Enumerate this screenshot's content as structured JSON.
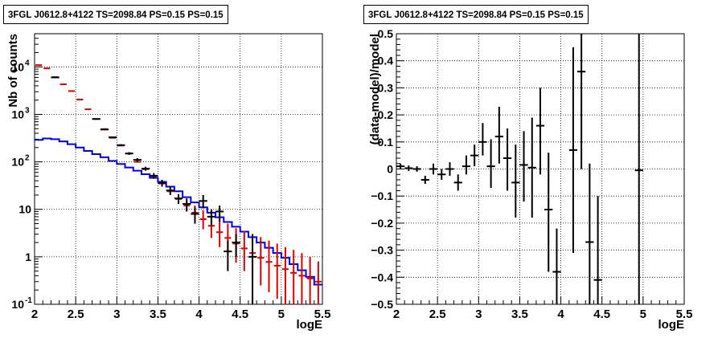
{
  "chart_data": [
    {
      "type": "scatter",
      "title": "3FGL J0612.8+4122 TS=2098.84 PS=0.15 PS=0.15",
      "xlabel": "logE",
      "ylabel": "Nb of counts",
      "xlim": [
        2,
        5.5
      ],
      "ylim": [
        0.1,
        50000
      ],
      "yscale": "log",
      "grid": true,
      "xticks": [
        "2",
        "2.5",
        "3",
        "3.5",
        "4",
        "4.5",
        "5",
        "5.5"
      ],
      "yticks": [
        {
          "v": 0.1,
          "label": "10",
          "exp": "-1"
        },
        {
          "v": 1,
          "label": "1",
          "exp": ""
        },
        {
          "v": 10,
          "label": "10",
          "exp": ""
        },
        {
          "v": 100,
          "label": "10",
          "exp": "2"
        },
        {
          "v": 1000,
          "label": "10",
          "exp": "3"
        },
        {
          "v": 10000,
          "label": "10",
          "exp": "4"
        }
      ],
      "colors": {
        "data": "#000000",
        "model": "#dd0000",
        "component": "#0000ee"
      },
      "series": [
        {
          "x": [
            2.05,
            2.15,
            2.25,
            2.35,
            2.45,
            2.55,
            2.65,
            2.75,
            2.85,
            2.95,
            3.05,
            3.15,
            3.25,
            3.35,
            3.45,
            3.55,
            3.65,
            3.75,
            3.85,
            3.95,
            4.05,
            4.15,
            4.25,
            4.35,
            4.45,
            4.55,
            4.65,
            4.75,
            4.85,
            4.95,
            5.05,
            5.15,
            5.25,
            5.35,
            5.45
          ],
          "y": [
            10900,
            9300,
            6100,
            4300,
            3100,
            2050,
            1280,
            800,
            490,
            320,
            220,
            150,
            100,
            70,
            50,
            35,
            24,
            16.5,
            12,
            8.5,
            6.2,
            4.5,
            3.3,
            2.5,
            1.9,
            1.5,
            1.2,
            0.95,
            0.78,
            0.65,
            0.55,
            0.46,
            0.4,
            0.35,
            0.3
          ],
          "ylo": [
            10900,
            9300,
            6100,
            4300,
            3100,
            2050,
            1280,
            800,
            490,
            320,
            220,
            150,
            100,
            70,
            50,
            35,
            24,
            16.5,
            9.5,
            5.8,
            3.8,
            2.5,
            1.6,
            1.1,
            0.75,
            0.5,
            0.35,
            0.25,
            0.18,
            0.13,
            0.1,
            0.1,
            0.1,
            0.1,
            0.1
          ],
          "yhi": [
            10900,
            9300,
            6100,
            4300,
            3100,
            2050,
            1280,
            800,
            490,
            320,
            220,
            150,
            100,
            70,
            50,
            35,
            24,
            16.5,
            15,
            12,
            9.5,
            7.5,
            6,
            5,
            4,
            3.5,
            3,
            2.6,
            2.2,
            1.9,
            1.6,
            1.4,
            1.2,
            1.0,
            0.8
          ]
        },
        {
          "x": [
            2.25,
            2.75,
            2.85,
            2.95,
            3.05,
            3.15,
            3.25,
            3.35,
            3.45,
            3.55,
            3.65,
            3.75,
            3.85,
            3.95,
            4.05,
            4.15,
            4.25,
            4.35,
            4.45,
            4.65
          ],
          "y": [
            6000,
            800,
            480,
            330,
            225,
            150,
            110,
            72,
            51,
            36,
            25,
            17,
            13,
            8,
            15,
            7,
            9,
            1.3,
            2,
            1.0
          ],
          "ylo": [
            6000,
            800,
            480,
            330,
            215,
            140,
            100,
            65,
            44,
            30,
            20,
            13,
            9,
            5,
            10.5,
            4.5,
            5.5,
            0.5,
            1,
            0.1
          ],
          "yhi": [
            6000,
            800,
            480,
            330,
            235,
            160,
            120,
            79,
            58,
            42,
            30,
            21,
            17,
            11,
            20,
            10,
            12,
            2.2,
            3,
            3
          ],
          "xerr": 0.05
        },
        {
          "edges": [
            2.0,
            2.1,
            2.2,
            2.3,
            2.4,
            2.5,
            2.6,
            2.7,
            2.8,
            2.9,
            3.0,
            3.1,
            3.2,
            3.3,
            3.4,
            3.5,
            3.6,
            3.7,
            3.8,
            3.9,
            4.0,
            4.1,
            4.2,
            4.3,
            4.4,
            4.5,
            4.6,
            4.7,
            4.8,
            4.9,
            5.0,
            5.1,
            5.2,
            5.3,
            5.4,
            5.5
          ],
          "values": [
            290,
            310,
            300,
            270,
            235,
            200,
            170,
            145,
            125,
            105,
            90,
            76,
            65,
            55,
            46,
            38,
            30,
            24,
            18,
            14,
            11,
            8.5,
            6.8,
            5.4,
            4.3,
            3.4,
            2.6,
            2.0,
            1.55,
            1.2,
            0.95,
            0.7,
            0.52,
            0.38,
            0.26
          ]
        }
      ]
    },
    {
      "type": "scatter",
      "title": "3FGL J0612.8+4122 TS=2098.84 PS=0.15 PS=0.15",
      "xlabel": "logE",
      "ylabel": "(data-model)/model",
      "xlim": [
        2,
        5.5
      ],
      "ylim": [
        -0.5,
        0.5
      ],
      "grid": true,
      "xticks": [
        "2",
        "2.5",
        "3",
        "3.5",
        "4",
        "4.5",
        "5",
        "5.5"
      ],
      "yticks": [
        "-0.5",
        "-0.4",
        "-0.3",
        "-0.2",
        "-0.1",
        "0",
        "0.1",
        "0.2",
        "0.3",
        "0.4",
        "0.5"
      ],
      "colors": {
        "data": "#000000"
      },
      "series": [
        {
          "x": [
            2.05,
            2.15,
            2.25,
            2.35,
            2.45,
            2.55,
            2.65,
            2.75,
            2.85,
            2.95,
            3.05,
            3.15,
            3.25,
            3.35,
            3.45,
            3.55,
            3.65,
            3.75,
            3.85,
            3.95,
            4.15,
            4.25,
            4.35,
            4.45,
            4.95
          ],
          "y": [
            0.01,
            0.003,
            0.0,
            -0.04,
            0.0,
            -0.02,
            0.0,
            -0.05,
            0.01,
            0.05,
            0.1,
            0.01,
            0.12,
            0.04,
            -0.05,
            0.015,
            0.005,
            0.16,
            -0.15,
            -0.38,
            0.07,
            0.36,
            -0.27,
            -0.41,
            -0.005
          ],
          "ylo": [
            0.0,
            -0.007,
            -0.01,
            -0.055,
            -0.02,
            -0.04,
            -0.025,
            -0.08,
            -0.02,
            0.01,
            0.05,
            -0.07,
            0.02,
            -0.08,
            -0.18,
            -0.12,
            -0.18,
            -0.02,
            -0.38,
            -0.5,
            -0.31,
            0.0,
            -0.5,
            -0.5,
            -0.5
          ],
          "yhi": [
            0.02,
            0.013,
            0.01,
            -0.025,
            0.02,
            0.0,
            0.025,
            -0.02,
            0.05,
            0.09,
            0.17,
            0.11,
            0.23,
            0.15,
            0.09,
            0.14,
            0.19,
            0.3,
            0.06,
            -0.22,
            0.45,
            0.5,
            0.02,
            -0.1,
            0.5
          ],
          "xerr": 0.05
        }
      ]
    }
  ]
}
